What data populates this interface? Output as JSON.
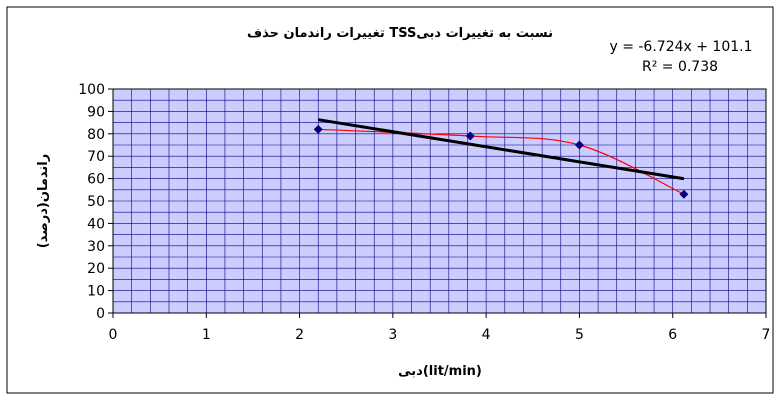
{
  "chart_data": {
    "type": "scatter",
    "title": "تغییرات راندمان حذف TSSنسبت به تغییرات دبی",
    "xlabel": "دبی(lit/min)",
    "ylabel": "راندمان(درصد)",
    "xlim": [
      0,
      7
    ],
    "ylim": [
      0,
      100
    ],
    "x_ticks": [
      "0",
      "1",
      "2",
      "3",
      "4",
      "5",
      "6",
      "7"
    ],
    "y_ticks": [
      "0",
      "10",
      "20",
      "30",
      "40",
      "50",
      "60",
      "70",
      "80",
      "90",
      "100"
    ],
    "grid": true,
    "legend": "none",
    "points": [
      {
        "x": 2.2,
        "y": 82
      },
      {
        "x": 3.83,
        "y": 79
      },
      {
        "x": 5.0,
        "y": 75
      },
      {
        "x": 6.12,
        "y": 53
      }
    ],
    "trendline": {
      "type": "linear",
      "slope": -6.724,
      "intercept": 101.1,
      "x_start": 2.2,
      "x_end": 6.12,
      "equation": "y = -6.724x + 101.1",
      "r_squared": "R² = 0.738"
    },
    "colors": {
      "plot_area": "#ccccff",
      "grid": "#000080",
      "markers": "#000080",
      "series_line": "#ff0000",
      "trendline": "#000000"
    }
  }
}
